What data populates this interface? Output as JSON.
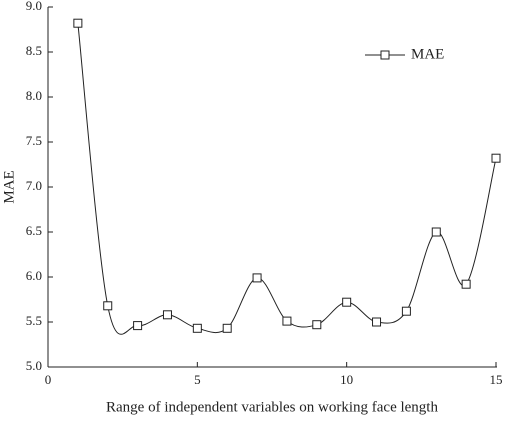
{
  "chart_data": {
    "type": "line",
    "x_label": "Range of independent variables on working face length",
    "y_label": "MAE",
    "x": [
      1,
      2,
      3,
      4,
      5,
      6,
      7,
      8,
      9,
      10,
      11,
      12,
      13,
      14,
      15
    ],
    "series": [
      {
        "name": "MAE",
        "color": "#222222",
        "values": [
          8.82,
          5.68,
          5.46,
          5.58,
          5.43,
          5.43,
          5.99,
          5.51,
          5.47,
          5.72,
          5.5,
          5.62,
          6.5,
          5.92,
          7.32
        ]
      }
    ],
    "xlim": [
      0,
      15
    ],
    "xticks": [
      0,
      5,
      10,
      15
    ],
    "ylim": [
      5.0,
      9.0
    ],
    "yticks": [
      {
        "value": 5.0,
        "label": "5.0"
      },
      {
        "value": 5.5,
        "label": "5.5"
      },
      {
        "value": 6.0,
        "label": "6.0"
      },
      {
        "value": 6.5,
        "label": "6.5"
      },
      {
        "value": 7.0,
        "label": "7.0"
      },
      {
        "value": 7.5,
        "label": "7.5"
      },
      {
        "value": 8.0,
        "label": "8.0"
      },
      {
        "value": 8.5,
        "label": "8.5"
      },
      {
        "value": 9.0,
        "label": "9.0"
      }
    ],
    "legend": "upper-right",
    "smooth": true,
    "marker": "square"
  }
}
